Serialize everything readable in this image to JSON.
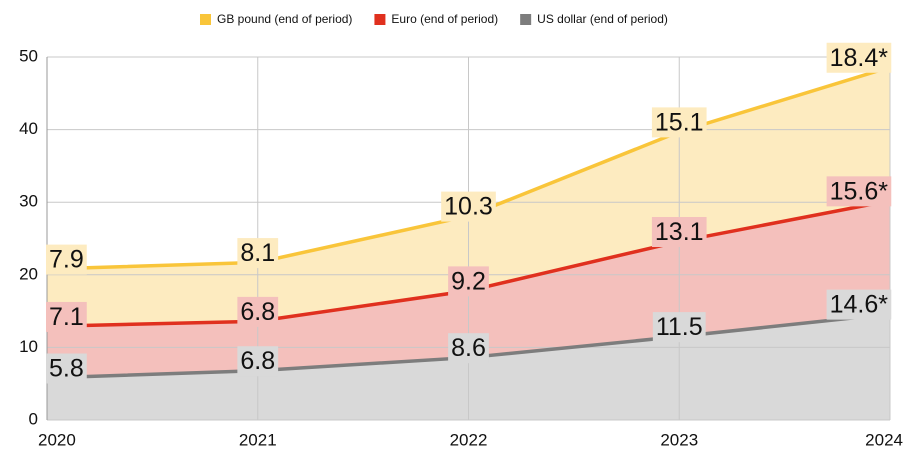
{
  "chart_data": {
    "type": "stacked_area",
    "categories": [
      "2020",
      "2021",
      "2022",
      "2023",
      "2024"
    ],
    "series": [
      {
        "name": "US dollar (end of period)",
        "color": "#7d7d7d",
        "fill": "#d9d9d9",
        "values": [
          5.8,
          6.8,
          8.6,
          11.5,
          14.6
        ],
        "value_labels": [
          "5.8",
          "6.8",
          "8.6",
          "11.5",
          "14.6*"
        ]
      },
      {
        "name": "Euro (end of period)",
        "color": "#e0301e",
        "fill": "#f4c0bc",
        "values": [
          7.1,
          6.8,
          9.2,
          13.1,
          15.6
        ],
        "value_labels": [
          "7.1",
          "6.8",
          "9.2",
          "13.1",
          "15.6*"
        ]
      },
      {
        "name": "GB pound (end of period)",
        "color": "#f9c53a",
        "fill": "#fdebc0",
        "values": [
          7.9,
          8.1,
          10.3,
          15.1,
          18.4
        ],
        "value_labels": [
          "7.9",
          "8.1",
          "10.3",
          "15.1",
          "18.4*"
        ]
      }
    ],
    "legend_order": [
      2,
      1,
      0
    ],
    "ylim": [
      0,
      50
    ],
    "yticks": [
      0,
      10,
      20,
      30,
      40,
      50
    ],
    "grid": true
  }
}
